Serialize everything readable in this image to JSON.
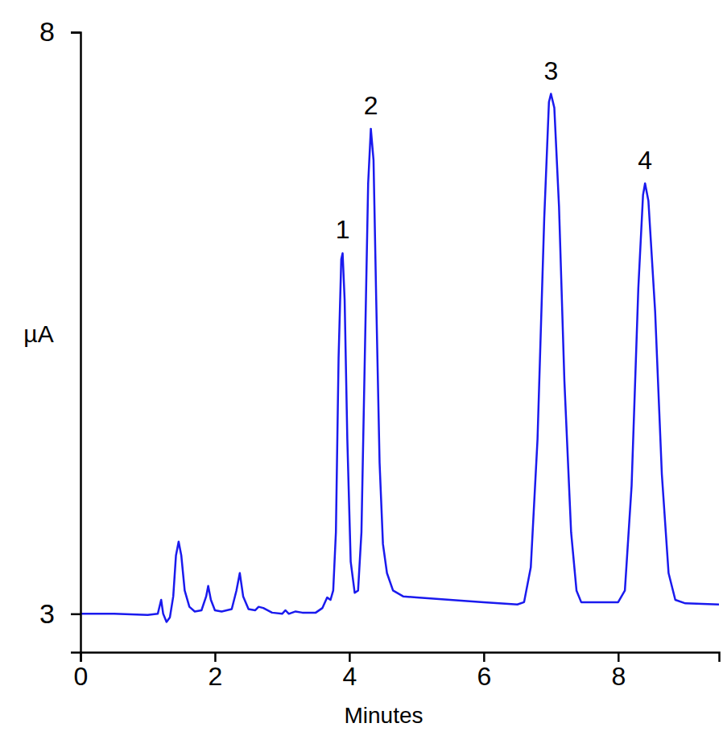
{
  "chart_data": {
    "type": "line",
    "x_label": "Minutes",
    "y_label": "µA",
    "color": "#1a1aee",
    "xlim": [
      0,
      9.5
    ],
    "ylim": [
      2.67,
      8
    ],
    "xticks": [
      0,
      2,
      4,
      6,
      8
    ],
    "yticks": [
      3,
      8
    ],
    "grid": false,
    "x": [
      0,
      0.5,
      1.0,
      1.15,
      1.2,
      1.23,
      1.28,
      1.33,
      1.38,
      1.42,
      1.46,
      1.5,
      1.55,
      1.62,
      1.7,
      1.8,
      1.87,
      1.9,
      1.94,
      2.0,
      2.1,
      2.25,
      2.32,
      2.37,
      2.42,
      2.5,
      2.6,
      2.65,
      2.72,
      2.85,
      3.0,
      3.05,
      3.1,
      3.2,
      3.3,
      3.5,
      3.6,
      3.67,
      3.72,
      3.76,
      3.8,
      3.84,
      3.88,
      3.9,
      3.93,
      3.97,
      4.02,
      4.08,
      4.13,
      4.18,
      4.23,
      4.28,
      4.32,
      4.36,
      4.4,
      4.45,
      4.5,
      4.56,
      4.65,
      4.8,
      5.0,
      5.5,
      6.0,
      6.5,
      6.6,
      6.7,
      6.8,
      6.9,
      6.97,
      7.0,
      7.05,
      7.12,
      7.2,
      7.3,
      7.38,
      7.45,
      7.6,
      8.0,
      8.1,
      8.2,
      8.3,
      8.37,
      8.4,
      8.45,
      8.55,
      8.65,
      8.75,
      8.85,
      9.0,
      9.5
    ],
    "values": [
      3.0,
      3.0,
      2.99,
      3.0,
      3.12,
      3.0,
      2.93,
      2.97,
      3.15,
      3.5,
      3.62,
      3.5,
      3.2,
      3.06,
      3.02,
      3.03,
      3.15,
      3.24,
      3.12,
      3.03,
      3.02,
      3.04,
      3.2,
      3.35,
      3.15,
      3.04,
      3.03,
      3.06,
      3.05,
      3.01,
      3.0,
      3.03,
      3.0,
      3.02,
      3.01,
      3.01,
      3.05,
      3.14,
      3.12,
      3.2,
      3.7,
      5.2,
      6.05,
      6.1,
      5.7,
      4.5,
      3.45,
      3.18,
      3.2,
      3.7,
      5.2,
      6.7,
      7.17,
      6.9,
      5.7,
      4.3,
      3.6,
      3.35,
      3.2,
      3.15,
      3.14,
      3.12,
      3.1,
      3.08,
      3.1,
      3.4,
      4.5,
      6.4,
      7.4,
      7.47,
      7.35,
      6.5,
      5.0,
      3.7,
      3.2,
      3.1,
      3.1,
      3.1,
      3.2,
      4.1,
      5.8,
      6.6,
      6.7,
      6.55,
      5.6,
      4.2,
      3.35,
      3.12,
      3.09,
      3.08
    ],
    "annotations": [
      {
        "text": "1",
        "x": 3.9,
        "y": 6.1
      },
      {
        "text": "2",
        "x": 4.32,
        "y": 7.17
      },
      {
        "text": "3",
        "x": 7.0,
        "y": 7.47
      },
      {
        "text": "4",
        "x": 8.4,
        "y": 6.7
      }
    ]
  }
}
